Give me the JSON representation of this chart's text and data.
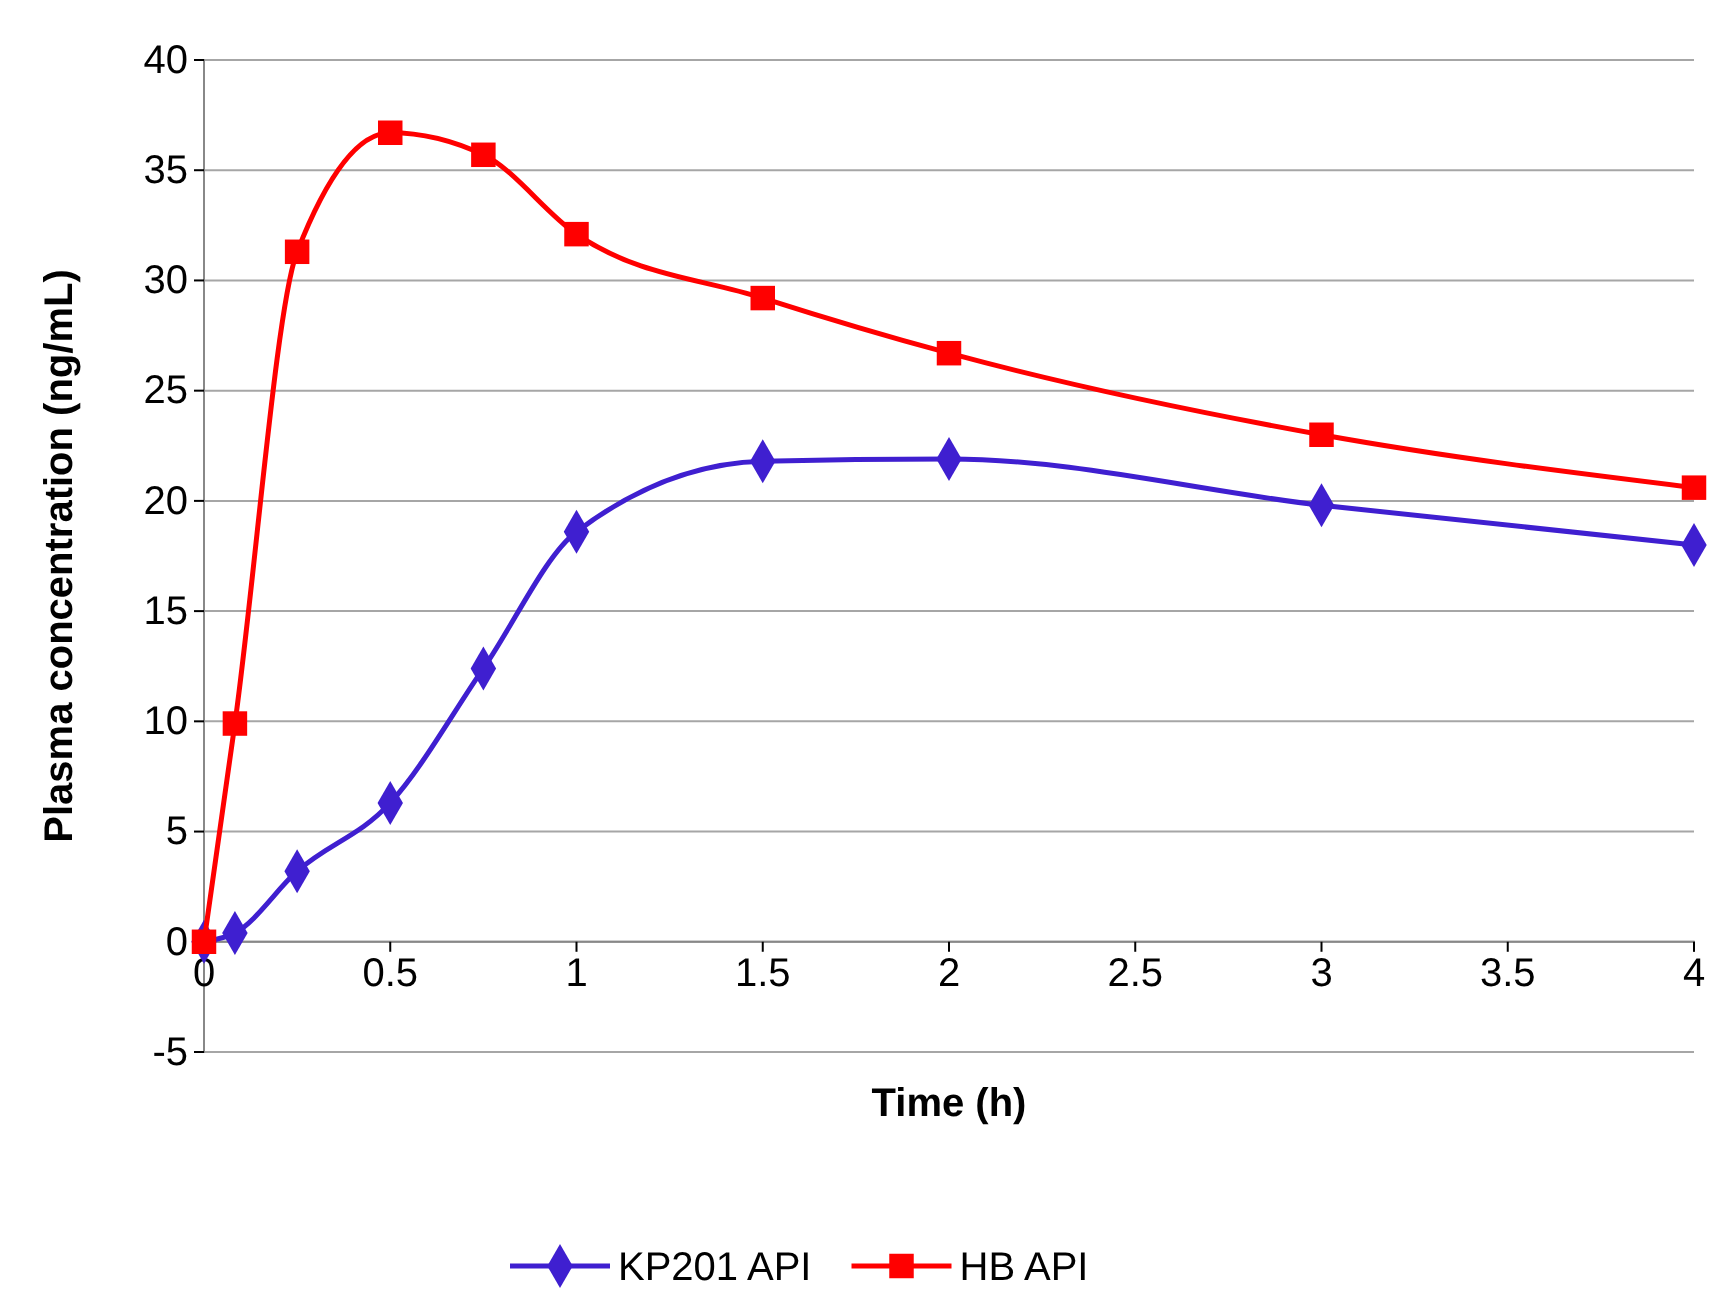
{
  "chart_data": {
    "type": "line",
    "xlabel": "Time  (h)",
    "ylabel": "Plasma  concentration  (ng/mL)",
    "xlim": [
      0,
      4
    ],
    "xticks": [
      0,
      0.5,
      1,
      1.5,
      2,
      2.5,
      3,
      3.5,
      4
    ],
    "ylim": [
      -5,
      40
    ],
    "yticks": [
      -5,
      0,
      5,
      10,
      15,
      20,
      25,
      30,
      35,
      40
    ],
    "grid": "y",
    "legend": "bottom",
    "line_style": "solid",
    "series": [
      {
        "name": "KP201 API",
        "color": "#3f1fd0",
        "marker": "diamond",
        "x": [
          0,
          0.083,
          0.25,
          0.5,
          0.75,
          1,
          1.5,
          2,
          3,
          4
        ],
        "values": [
          0,
          0.4,
          3.2,
          6.3,
          12.4,
          18.6,
          21.8,
          21.9,
          19.8,
          18.0
        ]
      },
      {
        "name": "HB API",
        "color": "#ff0000",
        "marker": "square",
        "x": [
          0,
          0.083,
          0.25,
          0.5,
          0.75,
          1,
          1.5,
          2,
          3,
          4
        ],
        "values": [
          0,
          9.9,
          31.3,
          36.7,
          35.7,
          32.1,
          29.2,
          26.7,
          23.0,
          20.6
        ]
      }
    ]
  }
}
